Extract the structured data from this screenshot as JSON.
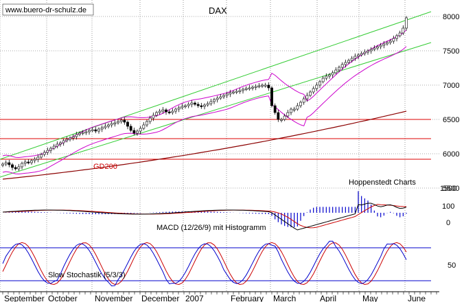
{
  "chart_data": {
    "type": "candlestick",
    "title": "DAX",
    "watermark": "www.buero-dr-schulz.de",
    "source_label": "Hoppenstedt Charts",
    "x_months": [
      "September",
      "October",
      "November",
      "December",
      "2007",
      "February",
      "March",
      "April",
      "May",
      "June"
    ],
    "price_panel": {
      "yticks": [
        5500,
        6000,
        6500,
        7000,
        7500,
        8000
      ],
      "ylim": [
        5500,
        8100
      ],
      "close": [
        5850,
        5870,
        5840,
        5800,
        5780,
        5810,
        5860,
        5880,
        5870,
        5900,
        5920,
        5950,
        5990,
        6020,
        6050,
        6080,
        6110,
        6140,
        6160,
        6190,
        6210,
        6230,
        6250,
        6280,
        6300,
        6310,
        6320,
        6340,
        6350,
        6330,
        6360,
        6380,
        6400,
        6420,
        6440,
        6450,
        6470,
        6490,
        6460,
        6400,
        6340,
        6300,
        6330,
        6370,
        6420,
        6470,
        6520,
        6560,
        6600,
        6620,
        6640,
        6610,
        6600,
        6620,
        6650,
        6670,
        6690,
        6700,
        6720,
        6740,
        6720,
        6700,
        6690,
        6710,
        6730,
        6760,
        6790,
        6810,
        6830,
        6850,
        6870,
        6890,
        6900,
        6910,
        6920,
        6940,
        6950,
        6960,
        6970,
        6980,
        6990,
        7000,
        7000,
        6960,
        6700,
        6600,
        6500,
        6500,
        6550,
        6600,
        6650,
        6650,
        6700,
        6750,
        6800,
        6850,
        6900,
        6950,
        7000,
        7050,
        7100,
        7130,
        7150,
        7180,
        7220,
        7260,
        7300,
        7330,
        7360,
        7390,
        7420,
        7440,
        7460,
        7480,
        7500,
        7520,
        7540,
        7560,
        7580,
        7600,
        7620,
        7640,
        7680,
        7720,
        7760,
        7830,
        7980
      ],
      "channel_lines": [
        {
          "from": 5920,
          "to": 8070,
          "color": "#33cc33"
        },
        {
          "from": 5660,
          "to": 7620,
          "color": "#33cc33"
        }
      ],
      "horizontal_levels": [
        6500,
        6220,
        5920
      ],
      "gd200": {
        "label": "GD200",
        "from": 5630,
        "to": 6620,
        "color": "#8b0000"
      },
      "bollinger_color": "#cc00cc"
    },
    "macd_panel": {
      "label": "MACD (12/26/9) mit Histogramm",
      "yticks": [
        1500,
        100,
        0
      ],
      "macd_color": "#000000",
      "signal_color": "#cc0000",
      "histogram_color": "#0000cc"
    },
    "stochastic_panel": {
      "label": "Slow Stochastik (5/3/3)",
      "yticks": [
        50
      ],
      "levels": [
        80,
        20
      ],
      "k_color": "#0000cc",
      "d_color": "#cc0000"
    }
  }
}
